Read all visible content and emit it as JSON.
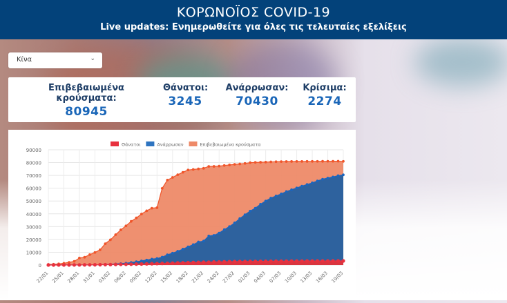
{
  "header": {
    "title": "ΚΟΡΩΝΟΪΟΣ COVID-19",
    "subtitle": "Live updates: Ενημερωθείτε για όλες τις τελευταίες εξελίξεις"
  },
  "country_select": {
    "value": "Κίνα",
    "icon": "chevron-down-icon"
  },
  "stats": [
    {
      "label": "Επιβεβαιωμένα κρούσματα:",
      "value": "80945"
    },
    {
      "label": "Θάνατοι:",
      "value": "3245"
    },
    {
      "label": "Ανάρρωσαν:",
      "value": "70430"
    },
    {
      "label": "Κρίσιμα:",
      "value": "2274"
    }
  ],
  "colors": {
    "header": "#03427a",
    "confirmed": "#ee7f5a",
    "confirmed_line": "#f0552a",
    "recovered": "#2e629e",
    "recovered_line": "#1a66c0",
    "deaths": "#e8313f",
    "stat_number": "#1a66b8"
  },
  "chart_data": {
    "type": "area",
    "title": "",
    "xlabel": "",
    "ylabel": "",
    "ylim": [
      0,
      90000
    ],
    "yticks": [
      0,
      10000,
      20000,
      30000,
      40000,
      50000,
      60000,
      70000,
      80000,
      90000
    ],
    "grid": true,
    "legend_position": "top",
    "xtick_labels": [
      "22/01",
      "25/01",
      "28/01",
      "31/01",
      "03/02",
      "06/02",
      "09/02",
      "12/02",
      "15/02",
      "18/02",
      "21/02",
      "24/02",
      "27/02",
      "01/03",
      "04/03",
      "07/03",
      "10/03",
      "13/03",
      "16/03",
      "19/03"
    ],
    "series": [
      {
        "name": "Θάνατοι",
        "color": "#e8313f",
        "values": [
          17,
          18,
          26,
          42,
          56,
          82,
          106,
          132,
          170,
          213,
          259,
          304,
          362,
          426,
          492,
          565,
          638,
          724,
          813,
          910,
          1018,
          1115,
          1261,
          1383,
          1526,
          1669,
          1775,
          1873,
          2009,
          2126,
          2247,
          2250,
          2442,
          2469,
          2592,
          2665,
          2715,
          2744,
          2788,
          2835,
          2870,
          2912,
          2945,
          2981,
          3013,
          3045,
          3073,
          3099,
          3123,
          3140,
          3162,
          3173,
          3180,
          3194,
          3204,
          3218,
          3231,
          3245
        ]
      },
      {
        "name": "Ανάρρωσαν",
        "color": "#2e629e",
        "values": [
          28,
          30,
          36,
          39,
          49,
          58,
          101,
          120,
          135,
          214,
          275,
          463,
          614,
          843,
          1115,
          1476,
          1999,
          2596,
          3219,
          3918,
          4636,
          5082,
          6217,
          7977,
          9298,
          10755,
          12462,
          14206,
          15962,
          18014,
          18704,
          22699,
          23170,
          24990,
          27650,
          30053,
          32898,
          36291,
          39279,
          42118,
          44395,
          47450,
          50001,
          52292,
          53944,
          55539,
          57388,
          58804,
          60181,
          61644,
          62901,
          64196,
          65660,
          67017,
          67910,
          68798,
          69755,
          70430
        ]
      },
      {
        "name": "Επιβεβαιωμένα κρούσματα",
        "color": "#ee7f5a",
        "values": [
          548,
          643,
          920,
          1406,
          2075,
          2877,
          5509,
          6087,
          8141,
          9802,
          11891,
          16630,
          19716,
          23707,
          27440,
          30587,
          34110,
          36814,
          39829,
          42354,
          44386,
          44759,
          59895,
          66358,
          68413,
          70513,
          72434,
          74211,
          74619,
          75077,
          75550,
          77001,
          77022,
          77241,
          77754,
          78166,
          78600,
          78928,
          79356,
          79932,
          80136,
          80261,
          80386,
          80537,
          80690,
          80770,
          80823,
          80860,
          80887,
          80921,
          80932,
          80945,
          80977,
          81003,
          81021,
          81048,
          81077,
          80945
        ]
      }
    ]
  },
  "legend": [
    "Θάνατοι",
    "Ανάρρωσαν",
    "Επιβεβαιωμένα κρούσματα"
  ]
}
